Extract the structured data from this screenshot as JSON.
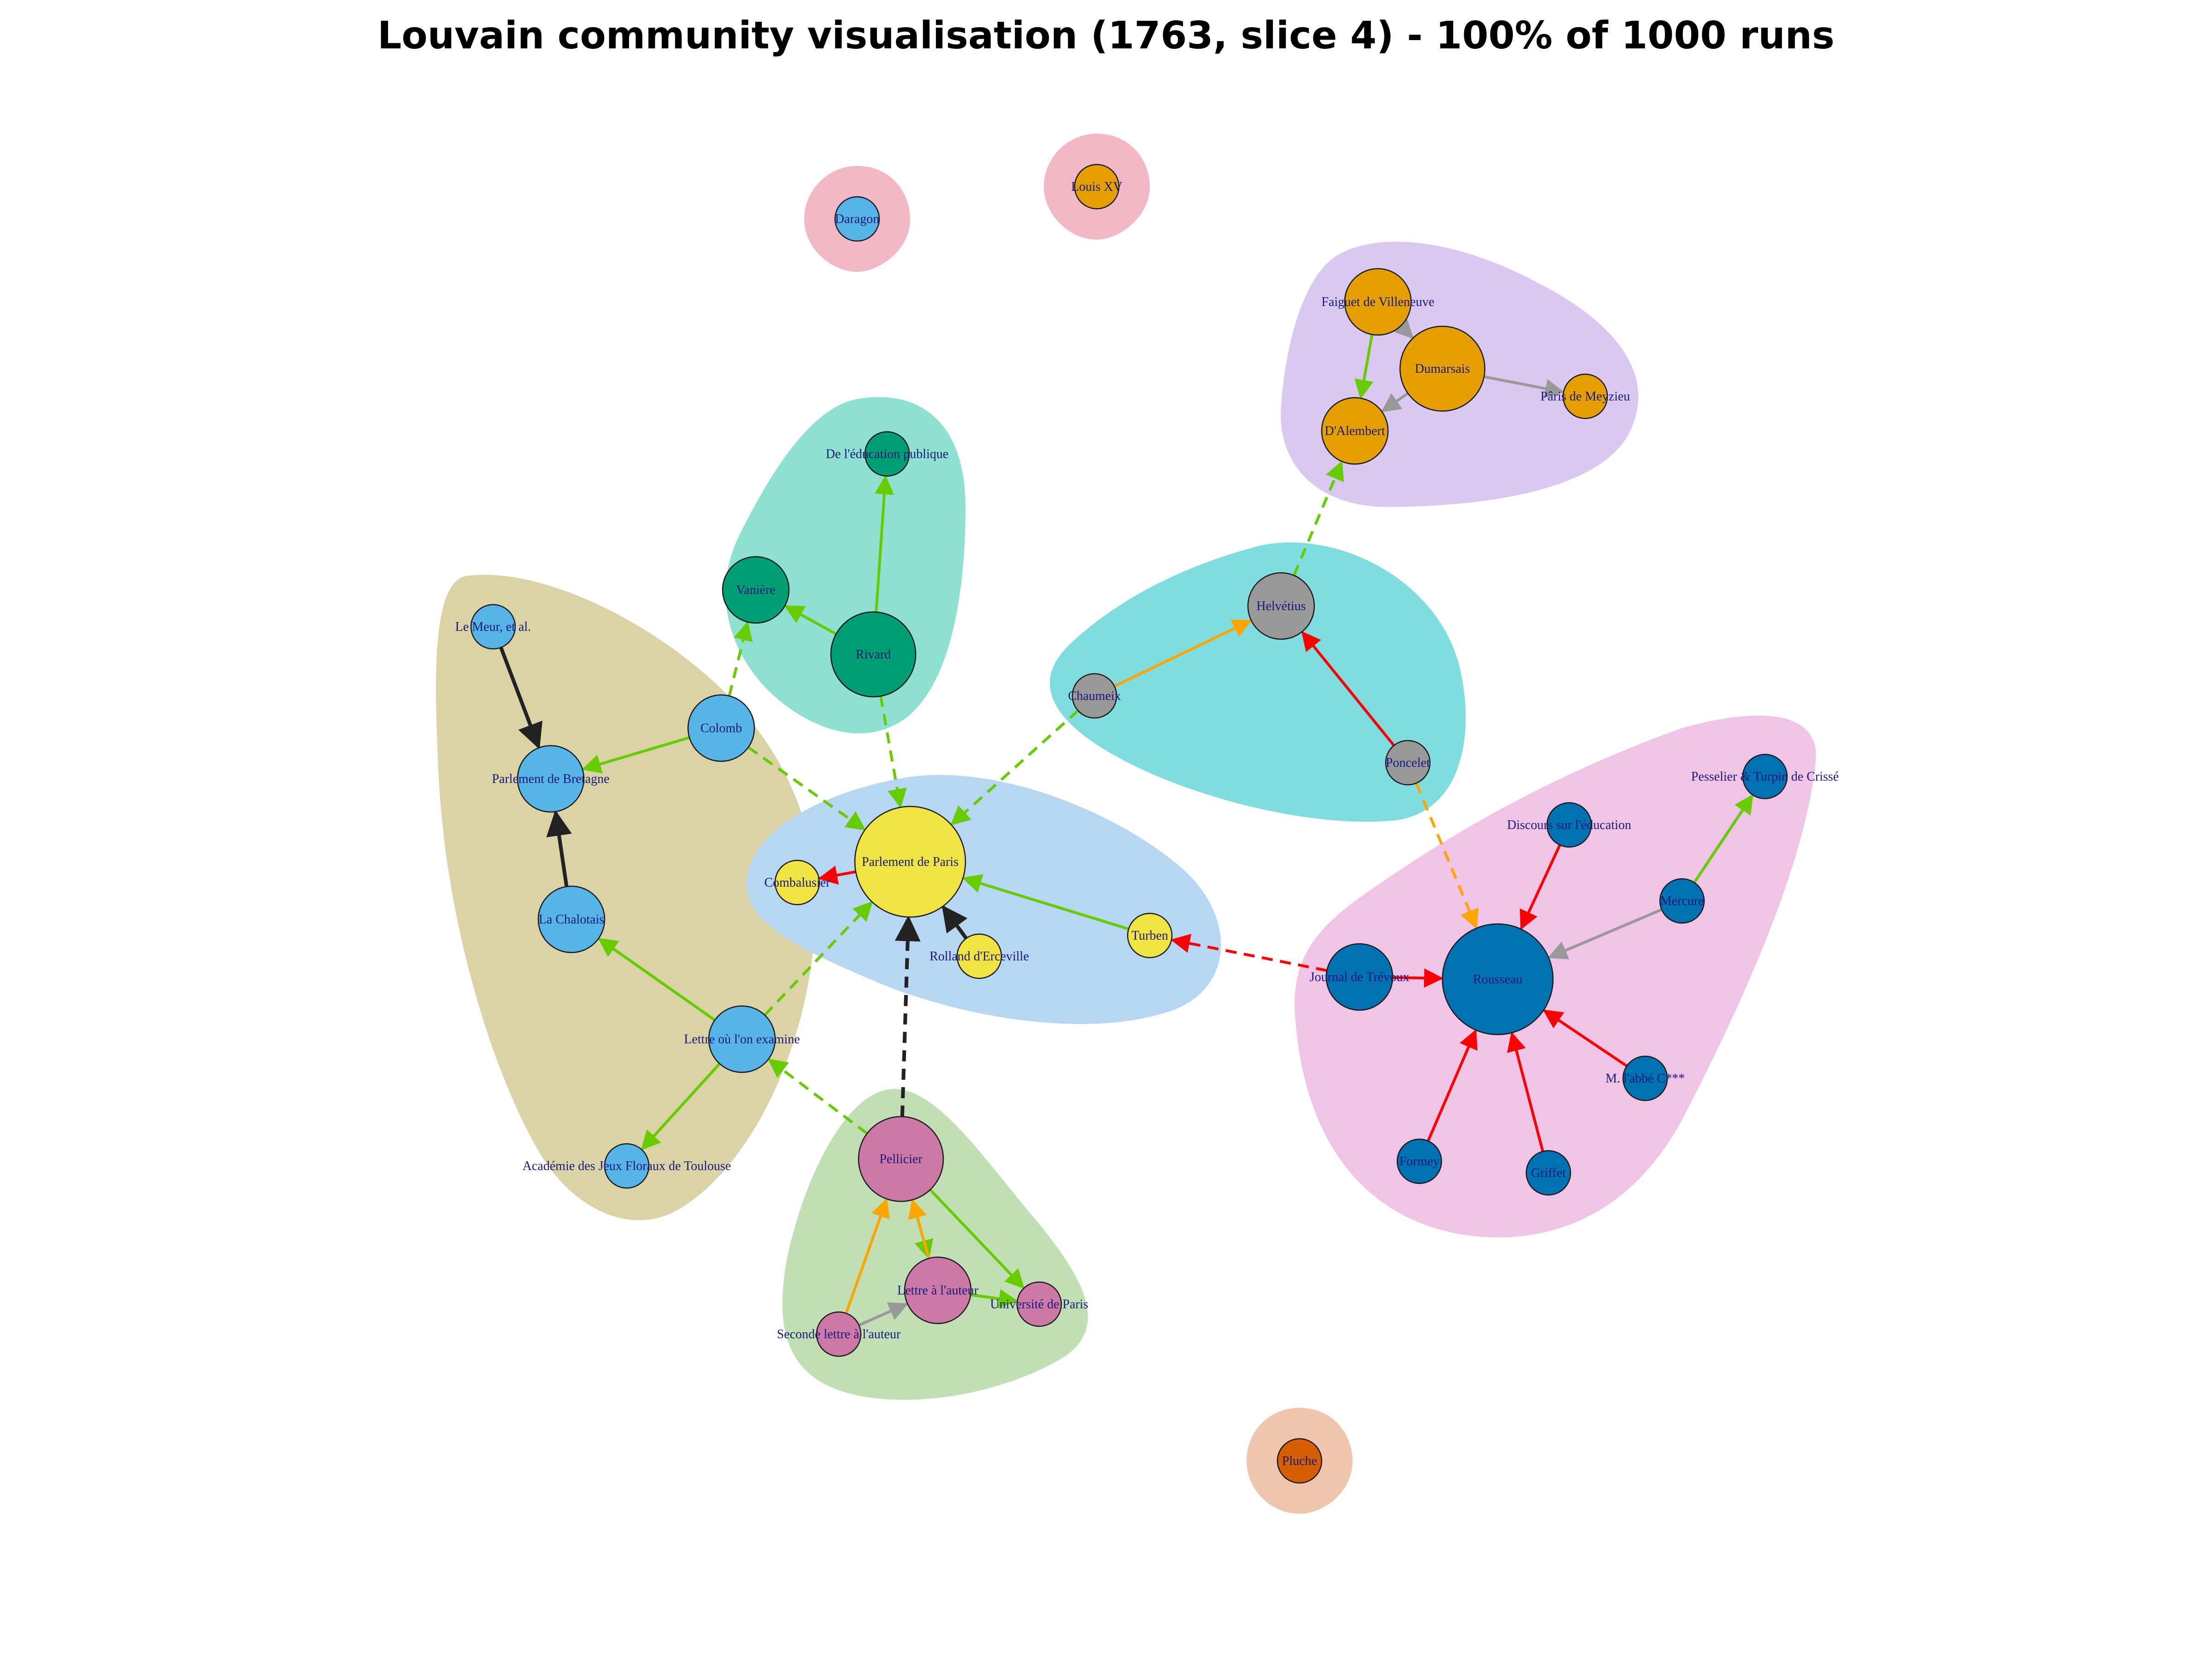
{
  "title": "Louvain community visualisation (1763, slice 4) - 100% of 1000 runs",
  "colors": {
    "edge_green": "#66cc00",
    "edge_red": "#ff0000",
    "edge_orange": "#ffa500",
    "edge_grey": "#999999",
    "edge_black": "#222222",
    "label": "#1a1a7a"
  },
  "communities": [
    {
      "id": "daragon",
      "color": "#f2b8c6"
    },
    {
      "id": "louisxv",
      "color": "#f2b8c6"
    },
    {
      "id": "encyclopedists",
      "color": "#d9c8ef"
    },
    {
      "id": "rivard",
      "color": "#8ee0d0"
    },
    {
      "id": "bretagne",
      "color": "#d9d3a5"
    },
    {
      "id": "helvetius",
      "color": "#7fdde0"
    },
    {
      "id": "parlement",
      "color": "#b6d6f1"
    },
    {
      "id": "rousseau",
      "color": "#efc4e6"
    },
    {
      "id": "pellicier",
      "color": "#c0dfb4"
    },
    {
      "id": "pluche",
      "color": "#eec6ad"
    }
  ],
  "nodes": [
    {
      "id": "daragon",
      "label": "Daragon",
      "color": "#56b4e9",
      "size": 1
    },
    {
      "id": "louisxv",
      "label": "Louis XV",
      "color": "#e69f00",
      "size": 1
    },
    {
      "id": "faiguet",
      "label": "Faiguet de Villeneuve",
      "color": "#e69f00",
      "size": 2
    },
    {
      "id": "dumarsais",
      "label": "Dumarsais",
      "color": "#e69f00",
      "size": 3
    },
    {
      "id": "paris_meyzieu",
      "label": "Pâris de Meyzieu",
      "color": "#e69f00",
      "size": 1
    },
    {
      "id": "dalembert",
      "label": "D'Alembert",
      "color": "#e69f00",
      "size": 2
    },
    {
      "id": "educ_publique",
      "label": "De l'éducation publique",
      "color": "#009e73",
      "size": 1
    },
    {
      "id": "vaniere",
      "label": "Vanière",
      "color": "#009e73",
      "size": 2
    },
    {
      "id": "rivard",
      "label": "Rivard",
      "color": "#009e73",
      "size": 3
    },
    {
      "id": "le_meur",
      "label": "Le Meur, et al.",
      "color": "#56b4e9",
      "size": 1
    },
    {
      "id": "colomb",
      "label": "Colomb",
      "color": "#56b4e9",
      "size": 2
    },
    {
      "id": "parl_bretagne",
      "label": "Parlement de Bretagne",
      "color": "#56b4e9",
      "size": 2
    },
    {
      "id": "la_chalotais",
      "label": "La Chalotais",
      "color": "#56b4e9",
      "size": 2
    },
    {
      "id": "lettre_examine",
      "label": "Lettre où l'on examine",
      "color": "#56b4e9",
      "size": 2
    },
    {
      "id": "academie",
      "label": "Académie des Jeux Floraux de Toulouse",
      "color": "#56b4e9",
      "size": 1
    },
    {
      "id": "helvetius",
      "label": "Helvétius",
      "color": "#999999",
      "size": 2
    },
    {
      "id": "chaumeix",
      "label": "Chaumeix",
      "color": "#999999",
      "size": 1
    },
    {
      "id": "poncelet",
      "label": "Poncelet",
      "color": "#999999",
      "size": 1
    },
    {
      "id": "parl_paris",
      "label": "Parlement de Paris",
      "color": "#f0e442",
      "size": 4
    },
    {
      "id": "combalusier",
      "label": "Combalusier",
      "color": "#f0e442",
      "size": 1
    },
    {
      "id": "rolland",
      "label": "Rolland d'Erceville",
      "color": "#f0e442",
      "size": 1
    },
    {
      "id": "turben",
      "label": "Turben",
      "color": "#f0e442",
      "size": 1
    },
    {
      "id": "pesselier",
      "label": "Pesselier & Turpin de Crissé",
      "color": "#0072b2",
      "size": 1
    },
    {
      "id": "discours",
      "label": "Discours sur l'éducation",
      "color": "#0072b2",
      "size": 1
    },
    {
      "id": "mercure",
      "label": "Mercure",
      "color": "#0072b2",
      "size": 1
    },
    {
      "id": "journal_trevoux",
      "label": "Journal de Trévoux",
      "color": "#0072b2",
      "size": 2
    },
    {
      "id": "rousseau",
      "label": "Rousseau",
      "color": "#0072b2",
      "size": 4
    },
    {
      "id": "abbe",
      "label": "M. l'abbé C***",
      "color": "#0072b2",
      "size": 1
    },
    {
      "id": "formey",
      "label": "Formey",
      "color": "#0072b2",
      "size": 1
    },
    {
      "id": "griffet",
      "label": "Griffet",
      "color": "#0072b2",
      "size": 1
    },
    {
      "id": "pellicier",
      "label": "Pellicier",
      "color": "#cc79a7",
      "size": 3
    },
    {
      "id": "lettre_auteur",
      "label": "Lettre à l'auteur",
      "color": "#cc79a7",
      "size": 2
    },
    {
      "id": "universite_paris",
      "label": "Université de Paris",
      "color": "#cc79a7",
      "size": 1
    },
    {
      "id": "seconde_lettre",
      "label": "Seconde lettre à l'auteur",
      "color": "#cc79a7",
      "size": 1
    },
    {
      "id": "pluche",
      "label": "Pluche",
      "color": "#d55e00",
      "size": 1
    }
  ],
  "edges": [
    {
      "from": "faiguet",
      "to": "dalembert",
      "color": "edge_green",
      "style": "solid"
    },
    {
      "from": "faiguet",
      "to": "dumarsais",
      "color": "edge_grey",
      "style": "solid"
    },
    {
      "from": "dumarsais",
      "to": "paris_meyzieu",
      "color": "edge_grey",
      "style": "solid"
    },
    {
      "from": "dumarsais",
      "to": "dalembert",
      "color": "edge_grey",
      "style": "solid"
    },
    {
      "from": "helvetius",
      "to": "dalembert",
      "color": "edge_green",
      "style": "dashed"
    },
    {
      "from": "rivard",
      "to": "educ_publique",
      "color": "edge_green",
      "style": "solid"
    },
    {
      "from": "rivard",
      "to": "vaniere",
      "color": "edge_green",
      "style": "solid"
    },
    {
      "from": "rivard",
      "to": "parl_paris",
      "color": "edge_green",
      "style": "dashed"
    },
    {
      "from": "colomb",
      "to": "vaniere",
      "color": "edge_green",
      "style": "dashed"
    },
    {
      "from": "colomb",
      "to": "parl_bretagne",
      "color": "edge_green",
      "style": "solid"
    },
    {
      "from": "colomb",
      "to": "parl_paris",
      "color": "edge_green",
      "style": "dashed"
    },
    {
      "from": "le_meur",
      "to": "parl_bretagne",
      "color": "edge_black",
      "style": "solid"
    },
    {
      "from": "la_chalotais",
      "to": "parl_bretagne",
      "color": "edge_black",
      "style": "solid"
    },
    {
      "from": "lettre_examine",
      "to": "la_chalotais",
      "color": "edge_green",
      "style": "solid"
    },
    {
      "from": "lettre_examine",
      "to": "academie",
      "color": "edge_green",
      "style": "solid"
    },
    {
      "from": "lettre_examine",
      "to": "parl_paris",
      "color": "edge_green",
      "style": "dashed"
    },
    {
      "from": "chaumeix",
      "to": "helvetius",
      "color": "edge_orange",
      "style": "solid"
    },
    {
      "from": "poncelet",
      "to": "helvetius",
      "color": "edge_red",
      "style": "solid"
    },
    {
      "from": "chaumeix",
      "to": "parl_paris",
      "color": "edge_green",
      "style": "dashed"
    },
    {
      "from": "poncelet",
      "to": "rousseau",
      "color": "edge_orange",
      "style": "dashed"
    },
    {
      "from": "parl_paris",
      "to": "combalusier",
      "color": "edge_red",
      "style": "solid"
    },
    {
      "from": "rolland",
      "to": "parl_paris",
      "color": "edge_black",
      "style": "solid"
    },
    {
      "from": "turben",
      "to": "parl_paris",
      "color": "edge_green",
      "style": "solid"
    },
    {
      "from": "journal_trevoux",
      "to": "turben",
      "color": "edge_red",
      "style": "dashed"
    },
    {
      "from": "journal_trevoux",
      "to": "rousseau",
      "color": "edge_red",
      "style": "solid"
    },
    {
      "from": "discours",
      "to": "rousseau",
      "color": "edge_red",
      "style": "solid"
    },
    {
      "from": "mercure",
      "to": "rousseau",
      "color": "edge_grey",
      "style": "solid"
    },
    {
      "from": "mercure",
      "to": "pesselier",
      "color": "edge_green",
      "style": "solid"
    },
    {
      "from": "abbe",
      "to": "rousseau",
      "color": "edge_red",
      "style": "solid"
    },
    {
      "from": "formey",
      "to": "rousseau",
      "color": "edge_red",
      "style": "solid"
    },
    {
      "from": "griffet",
      "to": "rousseau",
      "color": "edge_red",
      "style": "solid"
    },
    {
      "from": "pellicier",
      "to": "parl_paris",
      "color": "edge_black",
      "style": "dashed"
    },
    {
      "from": "pellicier",
      "to": "lettre_examine",
      "color": "edge_green",
      "style": "dashed"
    },
    {
      "from": "pellicier",
      "to": "lettre_auteur",
      "color": "edge_green",
      "style": "solid"
    },
    {
      "from": "pellicier",
      "to": "universite_paris",
      "color": "edge_green",
      "style": "solid"
    },
    {
      "from": "lettre_auteur",
      "to": "pellicier",
      "color": "edge_orange",
      "style": "solid"
    },
    {
      "from": "seconde_lettre",
      "to": "pellicier",
      "color": "edge_orange",
      "style": "solid"
    },
    {
      "from": "lettre_auteur",
      "to": "universite_paris",
      "color": "edge_green",
      "style": "solid"
    },
    {
      "from": "seconde_lettre",
      "to": "lettre_auteur",
      "color": "edge_grey",
      "style": "solid"
    }
  ]
}
